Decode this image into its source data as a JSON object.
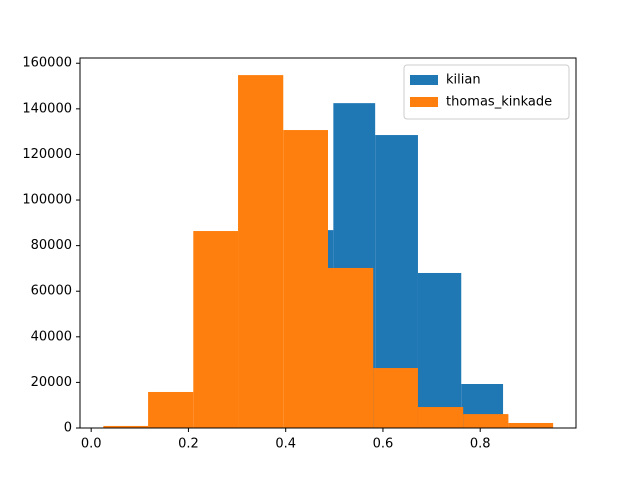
{
  "chart_data": {
    "type": "histogram",
    "series": [
      {
        "name": "kilian",
        "color": "#1f77b4",
        "bins": [
          0.409,
          0.498,
          0.584,
          0.672,
          0.761,
          0.847
        ],
        "values": [
          86800,
          142500,
          128500,
          68000,
          19300
        ]
      },
      {
        "name": "thomas_kinkade",
        "color": "#ff7f0e",
        "bins": [
          0.025,
          0.117,
          0.21,
          0.302,
          0.395,
          0.487,
          0.58,
          0.672,
          0.765,
          0.858,
          0.95
        ],
        "values": [
          900,
          15800,
          86400,
          154800,
          130700,
          70200,
          26300,
          9200,
          6100,
          2200
        ]
      }
    ],
    "xlim": [
      -0.023,
      0.997
    ],
    "ylim": [
      0,
      162300
    ],
    "xticks": [
      {
        "value": 0,
        "label": "0.0"
      },
      0.2,
      0.4,
      0.6,
      0.8
    ],
    "yticks": [
      0,
      20000,
      40000,
      60000,
      80000,
      100000,
      120000,
      140000,
      160000
    ],
    "legend": "upper right"
  }
}
